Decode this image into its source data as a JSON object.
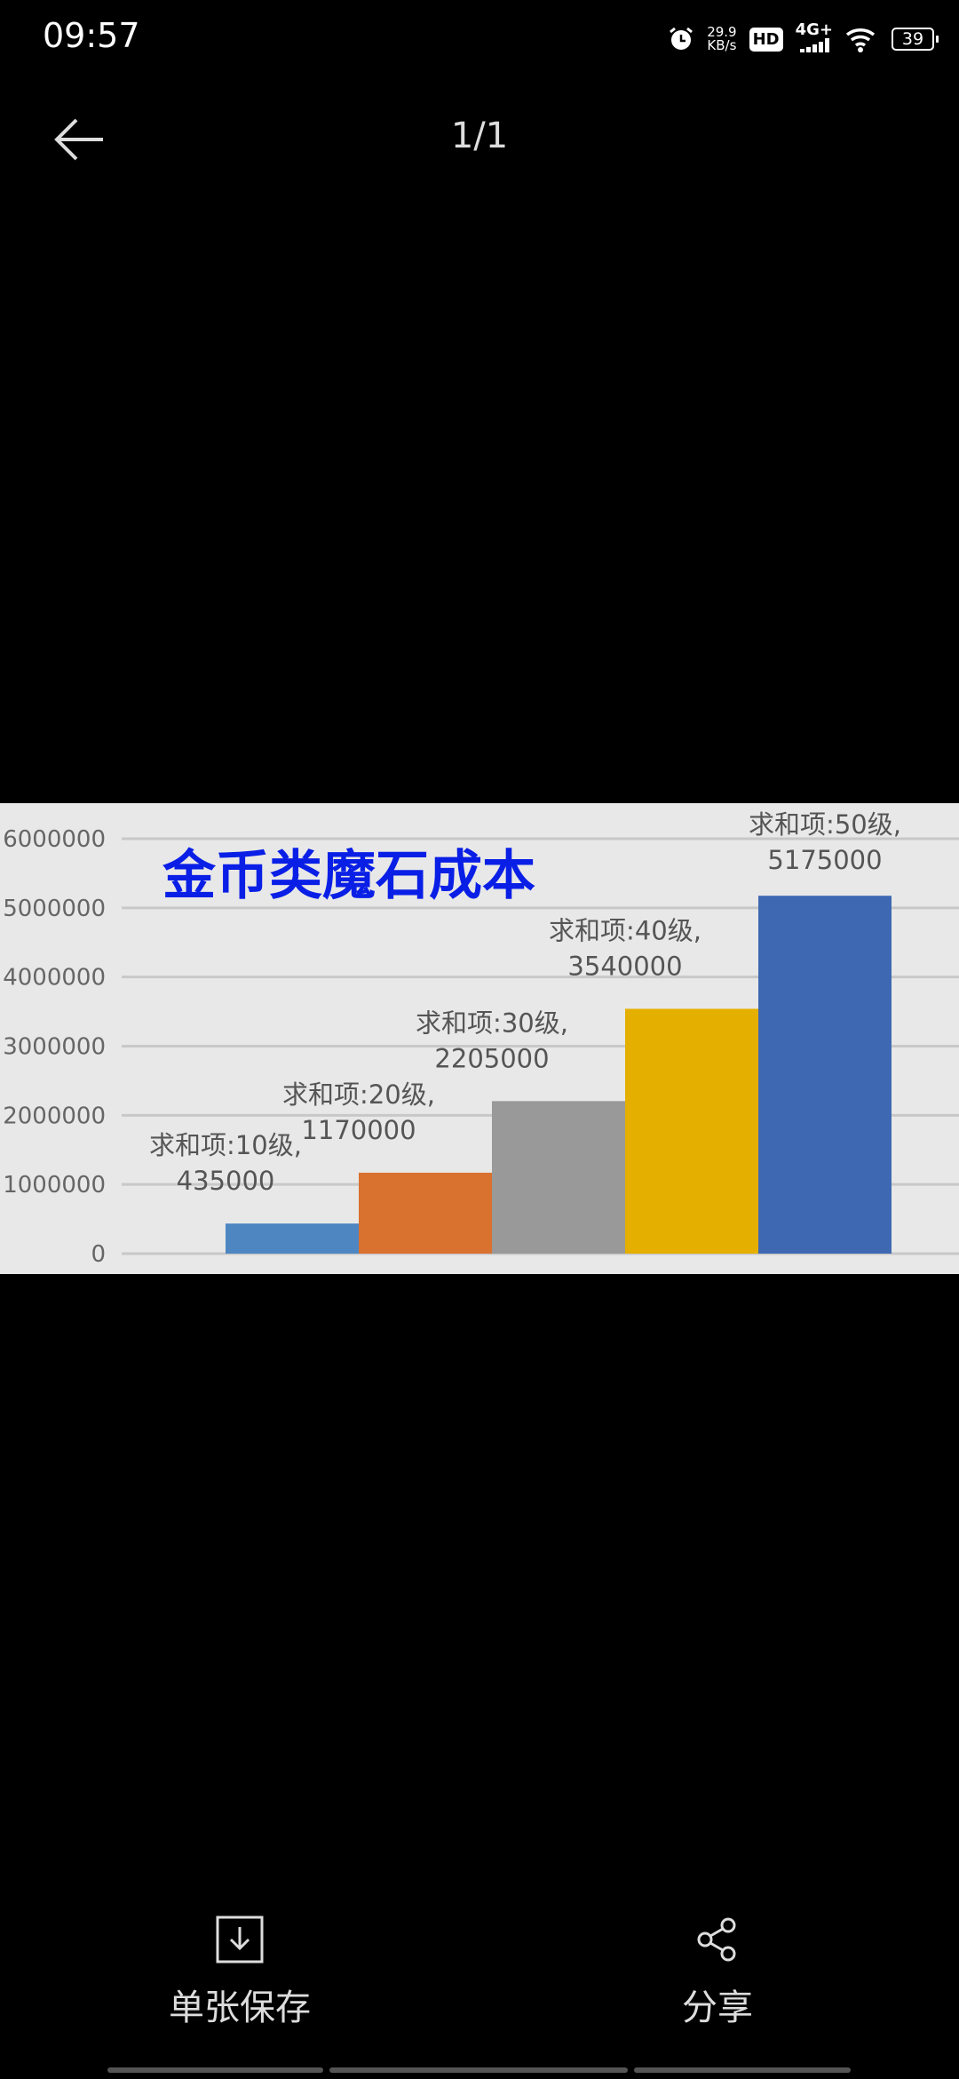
{
  "status_bar": {
    "time": "09:57",
    "net_speed": "29.9",
    "net_unit": "KB/s",
    "hd": "HD",
    "network": "4G+",
    "battery": "39"
  },
  "header": {
    "counter": "1/1"
  },
  "chart_data": {
    "type": "bar",
    "title": "金币类魔石成本",
    "categories": [
      "求和项:10级",
      "求和项:20级",
      "求和项:30级",
      "求和项:40级",
      "求和项:50级"
    ],
    "values": [
      435000,
      1170000,
      2205000,
      3540000,
      5175000
    ],
    "data_labels": [
      "求和项:10级,",
      "435000",
      "求和项:20级,",
      "1170000",
      "求和项:30级,",
      "2205000",
      "求和项:40级,",
      "3540000",
      "求和项:50级,",
      "5175000"
    ],
    "colors": [
      "#4e86c2",
      "#d9712f",
      "#999999",
      "#e5af00",
      "#3e68b2"
    ],
    "yticks": [
      "0",
      "1000000",
      "2000000",
      "3000000",
      "4000000",
      "5000000",
      "6000000"
    ],
    "ylim": [
      0,
      6000000
    ],
    "grid": true,
    "title_color": "#0a1fe6"
  },
  "actions": {
    "save": "单张保存",
    "share": "分享"
  }
}
